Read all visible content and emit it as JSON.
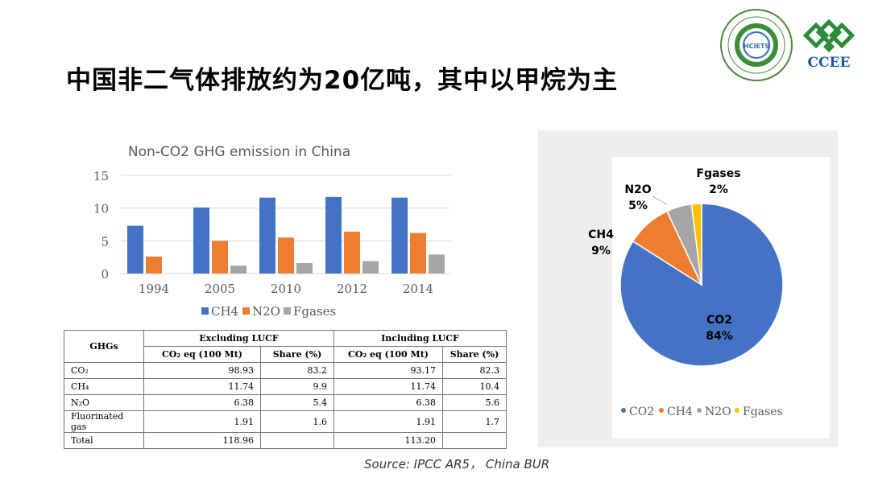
{
  "slide": {
    "title": "中国非二气体排放约为20亿吨，其中以甲烷为主",
    "source": "Source: IPCC AR5，  China BUR",
    "logo_right_text": "CCEE",
    "logo_left_text": "HCIETS"
  },
  "chart_data": [
    {
      "type": "bar",
      "title": "Non-CO2 GHG emission in China",
      "categories": [
        "1994",
        "2005",
        "2010",
        "2012",
        "2014"
      ],
      "series": [
        {
          "name": "CH4",
          "values": [
            7.3,
            10.1,
            11.6,
            11.7,
            11.6
          ],
          "color": "#4472c4"
        },
        {
          "name": "N2O",
          "values": [
            2.6,
            5.0,
            5.5,
            6.4,
            6.2
          ],
          "color": "#ed7d31"
        },
        {
          "name": "Fgases",
          "values": [
            0,
            1.2,
            1.6,
            1.9,
            2.9
          ],
          "color": "#a5a5a5"
        }
      ],
      "yticks": [
        "0",
        "5",
        "10",
        "15"
      ],
      "ylim": [
        0,
        15
      ],
      "legend": "bottom",
      "grid": true
    },
    {
      "type": "pie",
      "slices": [
        {
          "name": "CO2",
          "value": 84,
          "label": "84%",
          "color": "#4472c4"
        },
        {
          "name": "CH4",
          "value": 9,
          "label": "9%",
          "color": "#ed7d31"
        },
        {
          "name": "N2O",
          "value": 5,
          "label": "5%",
          "color": "#a5a5a5"
        },
        {
          "name": "Fgases",
          "value": 2,
          "label": "2%",
          "color": "#ffc000"
        }
      ],
      "legend": "bottom"
    }
  ],
  "table": {
    "ghgs_header": "GHGs",
    "group_excl": "Excluding LUCF",
    "group_incl": "Including LUCF",
    "col_eq_excl": "CO₂ eq (100 Mt)",
    "col_share_excl": "Share (%)",
    "col_eq_incl": "CO₂ eq (100 Mt)",
    "col_share_incl": "Share (%)",
    "rows": [
      {
        "gas": "CO₂",
        "excl_eq": "98.93",
        "excl_share": "83.2",
        "incl_eq": "93.17",
        "incl_share": "82.3"
      },
      {
        "gas": "CH₄",
        "excl_eq": "11.74",
        "excl_share": "9.9",
        "incl_eq": "11.74",
        "incl_share": "10.4"
      },
      {
        "gas": "N₂O",
        "excl_eq": "6.38",
        "excl_share": "5.4",
        "incl_eq": "6.38",
        "incl_share": "5.6"
      },
      {
        "gas": "Fluorinated gas",
        "excl_eq": "1.91",
        "excl_share": "1.6",
        "incl_eq": "1.91",
        "incl_share": "1.7"
      },
      {
        "gas": "Total",
        "excl_eq": "118.96",
        "excl_share": "",
        "incl_eq": "113.20",
        "incl_share": ""
      }
    ]
  }
}
